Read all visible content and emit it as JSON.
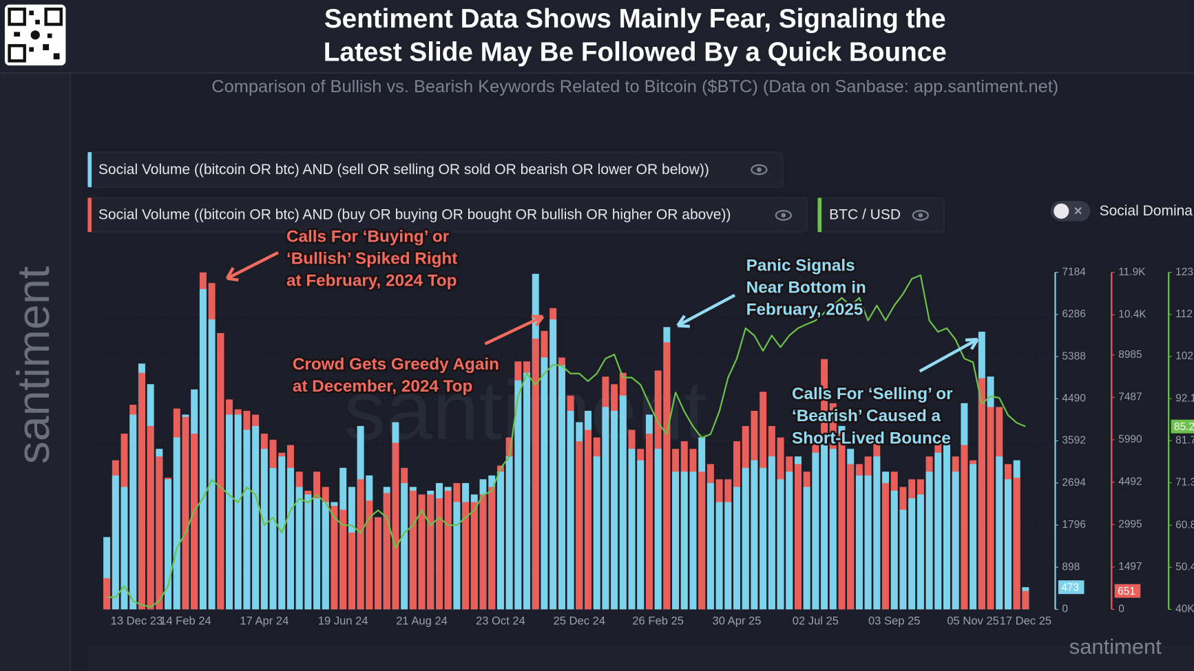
{
  "chart_data": {
    "type": "bar",
    "title": [
      "Sentiment Data Shows Mainly Fear, Signaling the",
      "Latest Slide May Be Followed By a Quick Bounce"
    ],
    "subtitle": "Comparison of Bullish vs. Bearish Keywords Related to Bitcoin ($BTC) (Data on Sanbase: app.santiment.net)",
    "branding": "santiment",
    "toggle_label": "Social Domina",
    "grid": true,
    "categories": [
      "13 Dec 23",
      null,
      null,
      null,
      null,
      null,
      null,
      null,
      null,
      "14 Feb 24",
      null,
      null,
      null,
      null,
      null,
      null,
      null,
      null,
      "17 Apr 24",
      null,
      null,
      null,
      null,
      null,
      null,
      null,
      null,
      "19 Jun 24",
      null,
      null,
      null,
      null,
      null,
      null,
      null,
      null,
      "21 Aug 24",
      null,
      null,
      null,
      null,
      null,
      null,
      null,
      null,
      "23 Oct 24",
      null,
      null,
      null,
      null,
      null,
      null,
      null,
      null,
      "25 Dec 24",
      null,
      null,
      null,
      null,
      null,
      null,
      null,
      null,
      "26 Feb 25",
      null,
      null,
      null,
      null,
      null,
      null,
      null,
      null,
      "30 Apr 25",
      null,
      null,
      null,
      null,
      null,
      null,
      null,
      null,
      "02 Jul 25",
      null,
      null,
      null,
      null,
      null,
      null,
      null,
      null,
      "03 Sep 25",
      null,
      null,
      null,
      null,
      null,
      null,
      null,
      null,
      "05 Nov 25",
      null,
      null,
      null,
      null,
      null,
      "17 Dec 25"
    ],
    "ylim": [
      0,
      7184
    ],
    "yticks": [
      0,
      898,
      1796,
      2694,
      3592,
      4490,
      5388,
      6286,
      7184
    ],
    "y2lim": [
      0,
      11900
    ],
    "y2ticks": [
      0,
      1497,
      2995,
      4492,
      5990,
      7487,
      8985,
      {
        "value": 10400,
        "label": "10.4K"
      },
      {
        "value": 11900,
        "label": "11.9K"
      }
    ],
    "y3lim": [
      40000,
      123300
    ],
    "y3ticks": [
      {
        "value": 40000,
        "label": "40K"
      },
      {
        "value": 50400,
        "label": "50.4"
      },
      {
        "value": 60800,
        "label": "60.8"
      },
      {
        "value": 71300,
        "label": "71.3"
      },
      {
        "value": 81700,
        "label": "81.7"
      },
      {
        "value": 92100,
        "label": "92.1"
      },
      {
        "value": 102500,
        "label": "102"
      },
      {
        "value": 112900,
        "label": "112"
      },
      {
        "value": 123300,
        "label": "123"
      }
    ],
    "series": [
      {
        "name": "Social Volume ((bitcoin OR btc) AND (sell OR selling OR sold OR bearish OR lower OR below))",
        "type": "bar",
        "axis": "y",
        "color": "#7dd3ec",
        "values": [
          1541,
          2855,
          2611,
          4152,
          5239,
          4801,
          3422,
          2774,
          3666,
          4152,
          4688,
          6829,
          6180,
          5888,
          4152,
          4152,
          3828,
          3909,
          3422,
          3017,
          3260,
          3017,
          2611,
          2449,
          2368,
          2287,
          2287,
          3017,
          2611,
          3909,
          2855,
          1963,
          2611,
          3990,
          2693,
          2611,
          2449,
          2530,
          2693,
          2611,
          2287,
          2693,
          2449,
          2774,
          2855,
          2936,
          3260,
          4882,
          5044,
          7153,
          5369,
          6180,
          5207,
          4233,
          3990,
          4233,
          3260,
          4315,
          4233,
          4558,
          3422,
          3179,
          4152,
          3422,
          6018,
          2936,
          2936,
          2936,
          3666,
          2693,
          2287,
          2287,
          2611,
          3017,
          3179,
          3017,
          3260,
          2774,
          2936,
          3260,
          2611,
          3341,
          3747,
          3422,
          3909,
          3422,
          2855,
          2855,
          3260,
          2936,
          2530,
          2125,
          2368,
          2449,
          2936,
          3341,
          3504,
          2936,
          4396,
          3098,
          5920,
          4963,
          3260,
          2774,
          3179,
          473
        ]
      },
      {
        "name": "Social Volume ((bitcoin OR btc) AND (buy OR buying OR bought OR bullish OR higher OR above))",
        "type": "bar",
        "axis": "y2",
        "color": "#e9605a",
        "values": [
          1101,
          5265,
          6205,
          7225,
          8353,
          6473,
          5399,
          4647,
          7091,
          6796,
          6205,
          11899,
          11523,
          9750,
          7413,
          7064,
          7010,
          6876,
          6205,
          5990,
          5533,
          5802,
          4862,
          4190,
          4862,
          4324,
          3653,
          3519,
          2713,
          4593,
          3841,
          3250,
          4110,
          5882,
          4996,
          4190,
          4056,
          4056,
          3922,
          4190,
          4459,
          3787,
          3787,
          4056,
          4324,
          5077,
          6070,
          8756,
          8756,
          9562,
          9831,
          10637,
          8891,
          7548,
          5936,
          6339,
          6070,
          8219,
          7951,
          8353,
          6339,
          5667,
          6205,
          8434,
          9428,
          5667,
          5936,
          5667,
          4862,
          5130,
          4593,
          4593,
          5936,
          6473,
          7010,
          7682,
          6473,
          6070,
          5399,
          5130,
          4862,
          5936,
          8837,
          7279,
          6205,
          5130,
          5130,
          5399,
          5936,
          4459,
          4862,
          4324,
          4593,
          4593,
          5399,
          5936,
          5936,
          5399,
          5802,
          5265,
          8165,
          7145,
          7145,
          5130,
          4647,
          651
        ]
      },
      {
        "name": "BTC / USD",
        "type": "line",
        "axis": "y3",
        "color": "#6cc24a",
        "values": [
          43000,
          43000,
          45800,
          42100,
          41100,
          40600,
          42100,
          45800,
          55200,
          58900,
          64500,
          67400,
          72000,
          70200,
          68300,
          66400,
          70200,
          68300,
          60800,
          62700,
          58900,
          64500,
          67400,
          66400,
          68300,
          66400,
          62700,
          60800,
          60800,
          58900,
          62700,
          64500,
          62700,
          55200,
          58900,
          60800,
          64500,
          60800,
          62700,
          60800,
          60800,
          62700,
          64500,
          68300,
          69200,
          74900,
          77700,
          92700,
          98300,
          95500,
          98300,
          100500,
          100200,
          98300,
          98300,
          96400,
          98300,
          102000,
          103000,
          97300,
          97300,
          95500,
          90800,
          86100,
          83300,
          93600,
          88900,
          85200,
          82400,
          83300,
          88900,
          97300,
          102000,
          109500,
          107700,
          103900,
          107700,
          104800,
          107700,
          109500,
          110500,
          111400,
          113300,
          115100,
          117000,
          115100,
          117000,
          111400,
          115100,
          111400,
          115100,
          118000,
          121700,
          122600,
          111400,
          108600,
          109500,
          106700,
          102000,
          101100,
          90800,
          92700,
          92300,
          88000,
          86100,
          85200
        ],
        "value_labels": [
          null,
          null,
          null,
          null,
          null,
          null,
          null,
          null,
          null,
          null,
          null,
          null,
          null,
          null,
          null,
          null,
          null,
          null,
          null,
          null,
          null,
          null,
          null,
          null,
          null,
          null,
          null,
          null,
          null,
          null,
          null,
          null,
          null,
          null,
          null,
          null,
          null,
          null,
          null,
          null,
          null,
          null,
          null,
          null,
          null,
          null,
          null,
          null,
          null,
          null,
          null,
          null,
          null,
          null,
          null,
          null,
          null,
          null,
          null,
          null,
          null,
          null,
          null,
          null,
          null,
          null,
          null,
          null,
          null,
          null,
          null,
          null,
          null,
          null,
          null,
          null,
          null,
          null,
          null,
          null,
          null,
          null,
          null,
          null,
          null,
          null,
          null,
          null,
          null,
          null,
          null,
          null,
          null,
          null,
          null,
          null,
          null,
          null,
          null,
          null,
          null,
          null,
          null,
          null,
          null,
          "85.2"
        ]
      }
    ],
    "annotations": [
      {
        "lines": [
          "Calls For ‘Buying’ or",
          "‘Bullish’ Spiked Right",
          "at February, 2024 Top"
        ],
        "color": "#f26b5f"
      },
      {
        "lines": [
          "Crowd Gets Greedy Again",
          "at December, 2024 Top"
        ],
        "color": "#f26b5f"
      },
      {
        "lines": [
          "Panic Signals",
          "Near Bottom in",
          "February, 2025"
        ],
        "color": "#93dbf2"
      },
      {
        "lines": [
          "Calls For ‘Selling’ or",
          "‘Bearish’ Caused a",
          "Short-Lived Bounce"
        ],
        "color": "#93dbf2"
      }
    ]
  }
}
